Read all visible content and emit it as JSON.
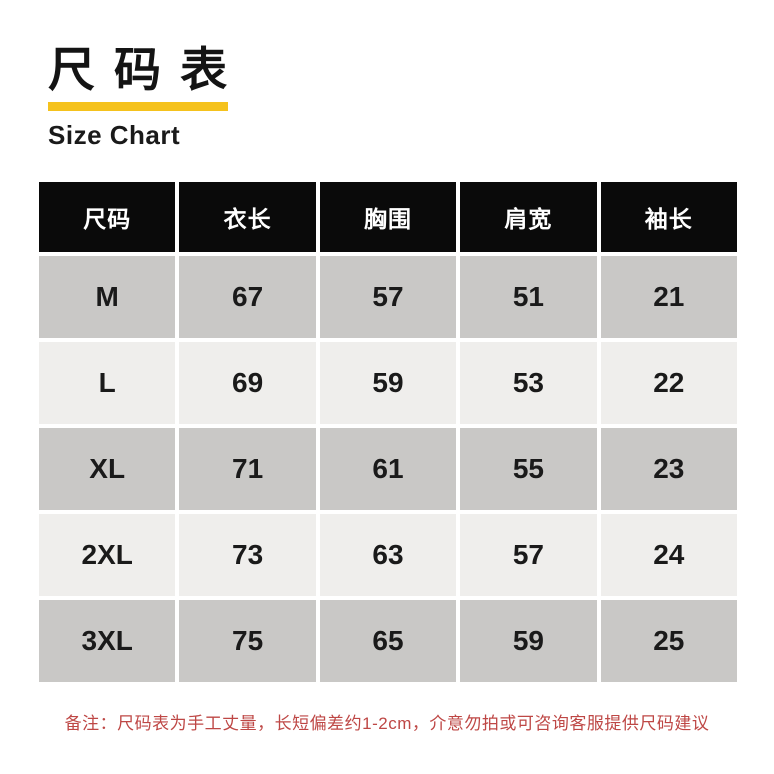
{
  "header": {
    "title_cn": "尺 码 表",
    "title_en": "Size Chart"
  },
  "chart_data": {
    "type": "table",
    "title": "尺码表 Size Chart",
    "columns": [
      "尺码",
      "衣长",
      "胸围",
      "肩宽",
      "袖长"
    ],
    "rows": [
      [
        "M",
        67,
        57,
        51,
        21
      ],
      [
        "L",
        69,
        59,
        53,
        22
      ],
      [
        "XL",
        71,
        61,
        55,
        23
      ],
      [
        "2XL",
        73,
        63,
        57,
        24
      ],
      [
        "3XL",
        75,
        65,
        59,
        25
      ]
    ],
    "units_implied": "cm",
    "layout": {
      "header_style": "black-bar",
      "row_striping": [
        "gray",
        "light-gray"
      ]
    }
  },
  "note": {
    "text": "备注：尺码表为手工丈量，长短偏差约1-2cm，介意勿拍或可咨询客服提供尺码建议"
  },
  "colors": {
    "accent_yellow": "#F5C21D",
    "header_bg": "#0A0A0A",
    "row_dark": "#C9C8C6",
    "row_light": "#EFEEEC",
    "note_red": "#BE4745",
    "text_black": "#1A1A1A"
  }
}
